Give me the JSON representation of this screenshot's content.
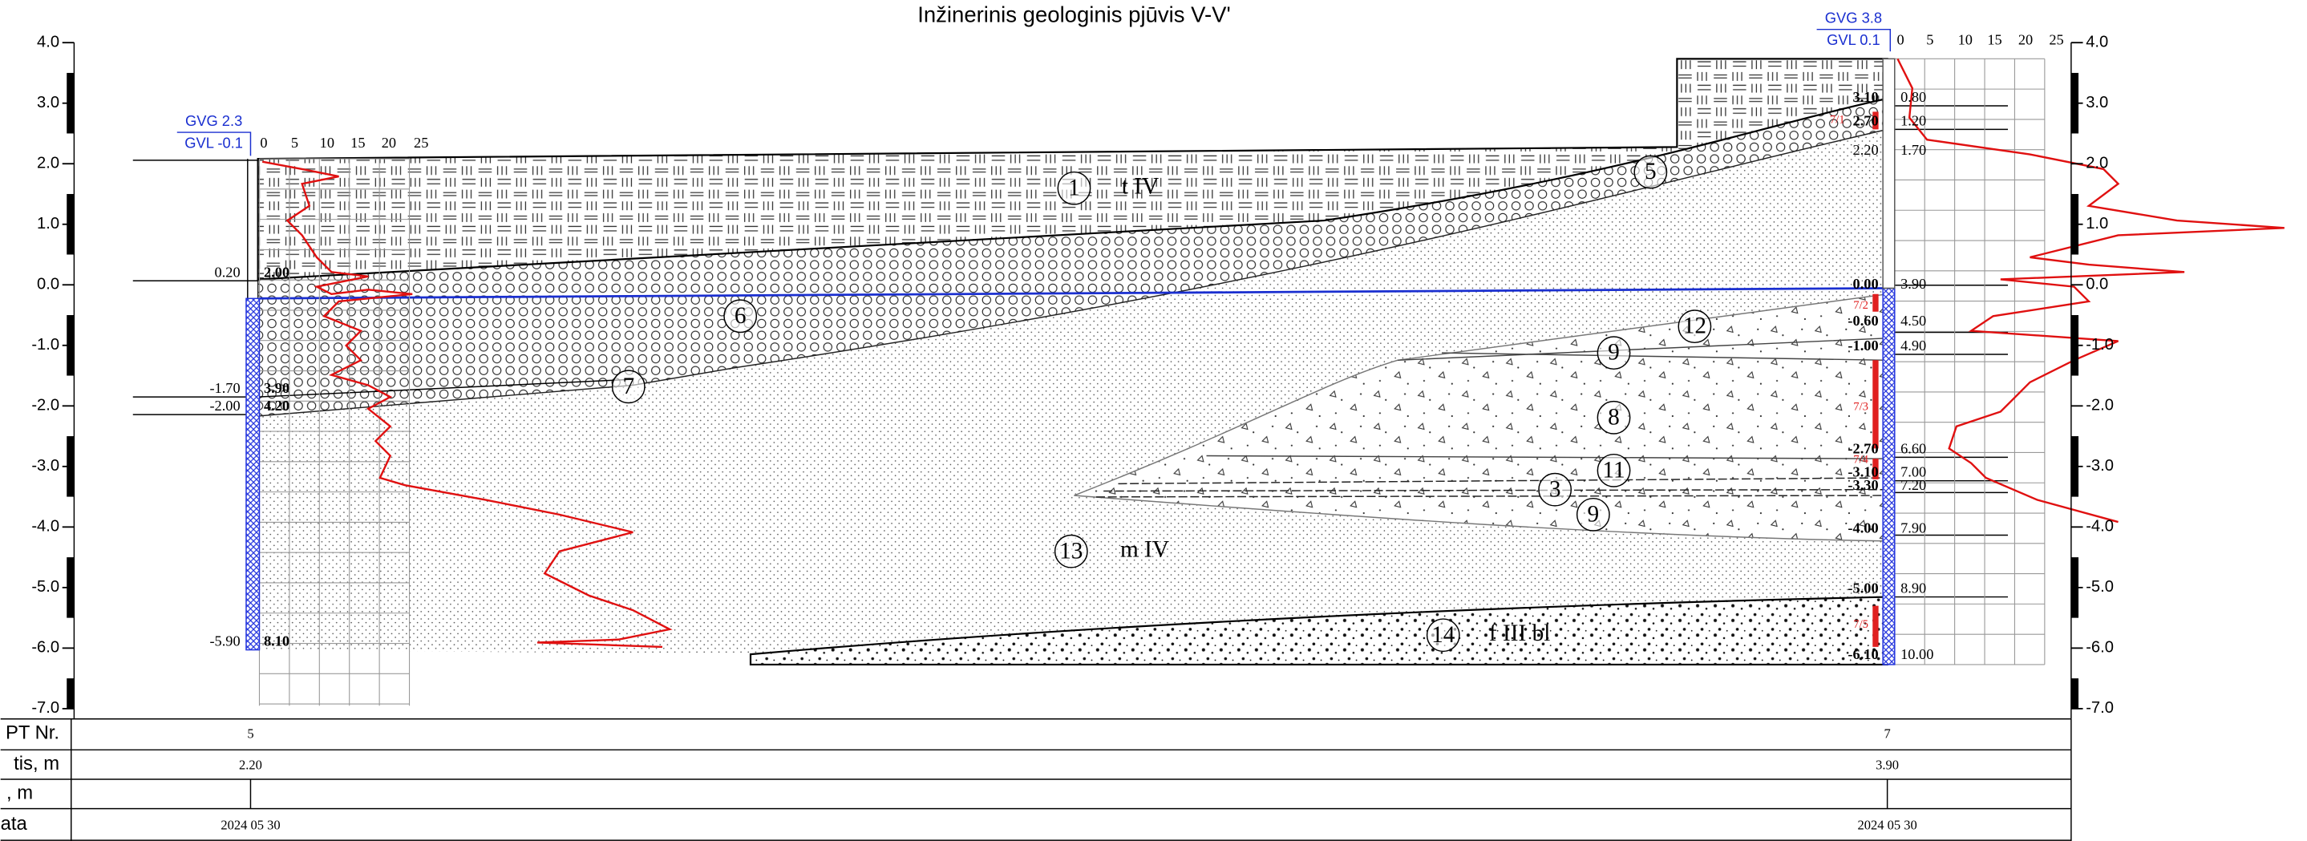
{
  "title": "Inžinerinis geologinis pjūvis V-V'",
  "elevation_axis": [
    "4.0",
    "3.0",
    "2.0",
    "1.0",
    "0.0",
    "-1.0",
    "-2.0",
    "-3.0",
    "-4.0",
    "-5.0",
    "-6.0",
    "-7.0"
  ],
  "boreholes": [
    {
      "gvg": "GVG 2.3",
      "gvl": "GVL -0.1",
      "cpt_scale": [
        "0",
        "5",
        "10",
        "15",
        "20",
        "25"
      ],
      "elevations": [
        "0.20",
        "-1.70",
        "-2.00",
        "-5.90"
      ],
      "depths": [
        "2.00",
        "3.90",
        "4.20",
        "8.10"
      ]
    },
    {
      "gvg": "GVG 3.8",
      "gvl": "GVL 0.1",
      "cpt_scale": [
        "0",
        "5",
        "10",
        "15",
        "20",
        "25"
      ],
      "elevations": [
        "3.10",
        "2.70",
        "2.20",
        "0.00",
        "-0.60",
        "-1.00",
        "-2.70",
        "-3.10",
        "-3.30",
        "-4.00",
        "-5.00",
        "-6.10"
      ],
      "depths": [
        "0.80",
        "1.20",
        "1.70",
        "3.90",
        "4.50",
        "4.90",
        "6.60",
        "7.00",
        "7.20",
        "7.90",
        "8.90",
        "10.00"
      ],
      "samples": [
        "7/1",
        "7/2",
        "7/3",
        "7/4",
        "7/5"
      ]
    }
  ],
  "layers": [
    {
      "number": "1",
      "label": "t IV"
    },
    {
      "number": "5"
    },
    {
      "number": "6"
    },
    {
      "number": "7"
    },
    {
      "number": "12"
    },
    {
      "number": "9"
    },
    {
      "number": "8"
    },
    {
      "number": "11"
    },
    {
      "number": "3"
    },
    {
      "number": "9"
    },
    {
      "number": "13",
      "label": "m IV"
    },
    {
      "number": "14",
      "label": "f III bl"
    }
  ],
  "table": {
    "row_labels": [
      "PT Nr.",
      "tis, m",
      ", m",
      "ata"
    ],
    "cpt_numbers": [
      "5",
      "7"
    ],
    "depths": [
      "2.20",
      "3.90"
    ],
    "dates": [
      "2024 05 30",
      "2024 05 30"
    ]
  }
}
